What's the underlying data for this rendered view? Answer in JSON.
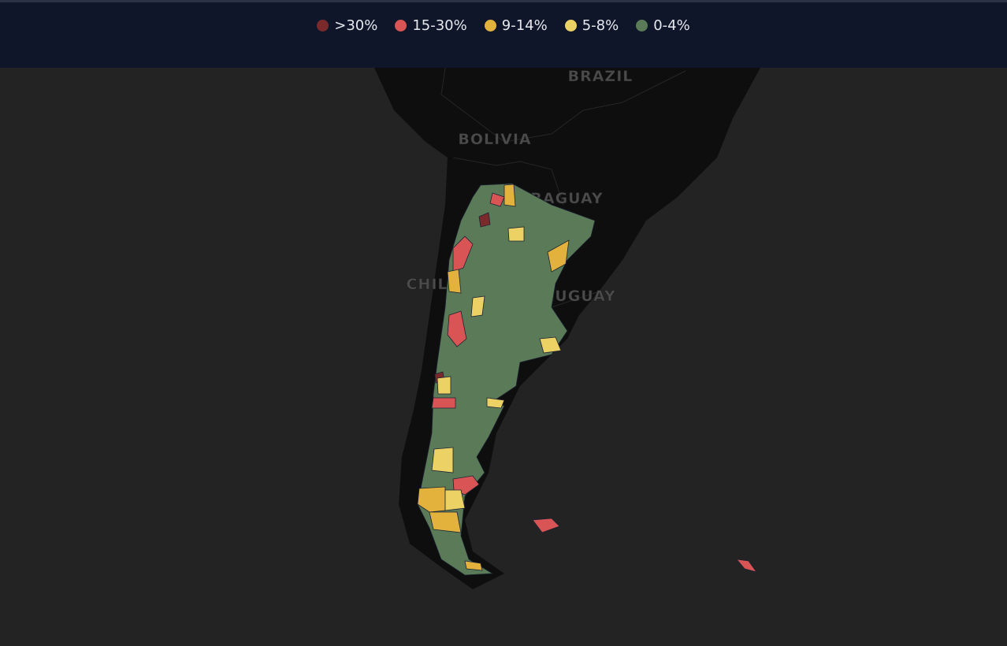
{
  "legend": [
    {
      "label": ">30%",
      "color": "#7b2a2c"
    },
    {
      "label": "15-30%",
      "color": "#d95454"
    },
    {
      "label": "9-14%",
      "color": "#e3b23c"
    },
    {
      "label": "5-8%",
      "color": "#ecd164"
    },
    {
      "label": "0-4%",
      "color": "#5b7b58"
    }
  ],
  "map_labels": [
    "BRAZIL",
    "BOLIVIA",
    "PARAGUAY",
    "CHILE",
    "URUGUAY"
  ]
}
